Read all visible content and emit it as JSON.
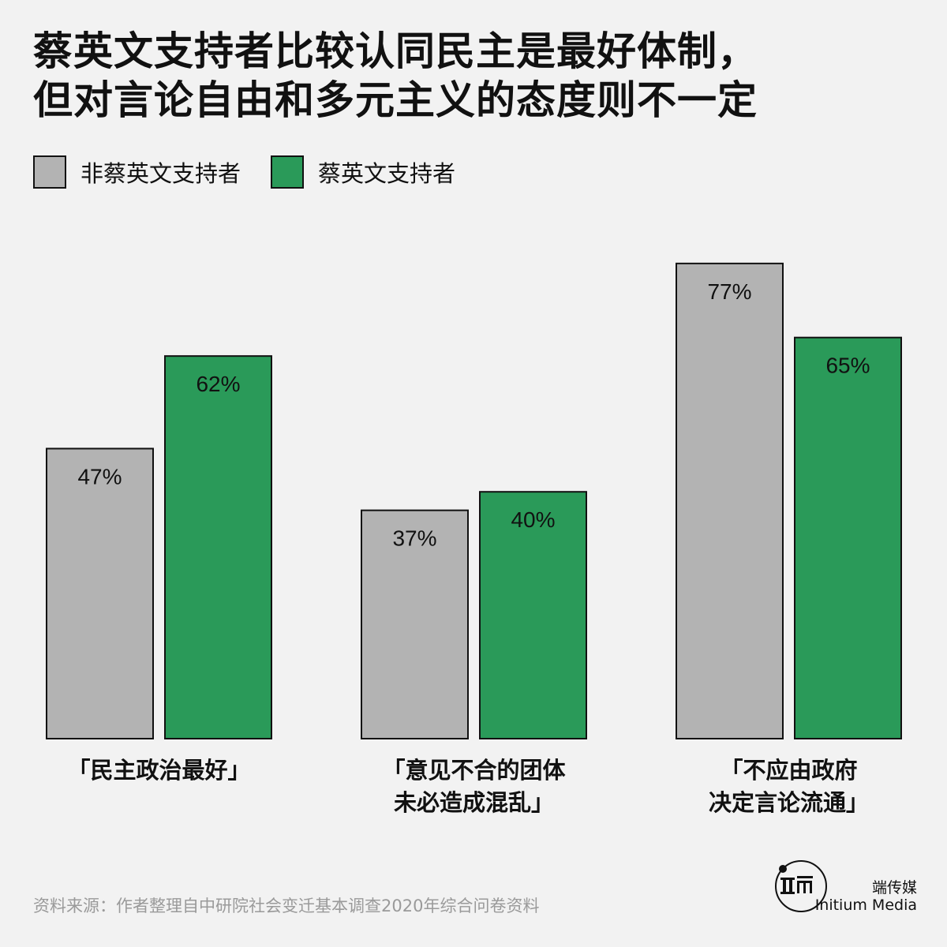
{
  "chart_data": {
    "type": "bar",
    "title_lines": [
      "蔡英文支持者比较认同民主是最好体制，",
      "但对言论自由和多元主义的态度则不一定"
    ],
    "categories": [
      [
        "「民主政治最好」"
      ],
      [
        "「意见不合的团体",
        "未必造成混乱」"
      ],
      [
        "「不应由政府",
        "决定言论流通」"
      ]
    ],
    "series": [
      {
        "name": "非蔡英文支持者",
        "color": "#b3b3b3",
        "values": [
          47,
          37,
          77
        ],
        "labels": [
          "47%",
          "37%",
          "77%"
        ]
      },
      {
        "name": "蔡英文支持者",
        "color": "#2a9a59",
        "values": [
          62,
          40,
          65
        ],
        "labels": [
          "62%",
          "40%",
          "65%"
        ]
      }
    ],
    "ylim": [
      0,
      100
    ],
    "grid": false,
    "legend_position": "top-left"
  },
  "source": "资料来源：作者整理自中研院社会变迁基本调查2020年综合问卷资料",
  "brand": {
    "name_cn": "端传媒",
    "name_en": "Initium Media"
  }
}
